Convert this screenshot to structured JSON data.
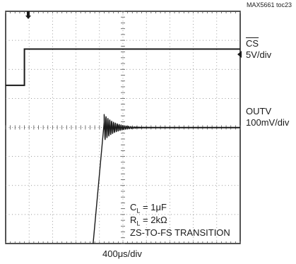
{
  "figure_id": "MAX5661 toc23",
  "channels": {
    "cs": {
      "name": "CS",
      "scale": "5V/div"
    },
    "outv": {
      "name": "OUTV",
      "scale": "100mV/div"
    }
  },
  "timebase": "400μs/div",
  "notes": {
    "cl": {
      "sym": "C",
      "sub": "L",
      "val": " = 1μF"
    },
    "rl": {
      "sym": "R",
      "sub": "L",
      "val": " = 2kΩ"
    },
    "mode": "ZS-TO-FS TRANSITION"
  },
  "chart_data": {
    "type": "line",
    "title": "",
    "xlabel": "400μs/div",
    "x_divisions": 10,
    "y_divisions": 8,
    "grid": true,
    "series": [
      {
        "name": "CS",
        "volts_per_div": 5,
        "x": [
          0,
          0.8,
          0.8,
          10
        ],
        "y": [
          0,
          0,
          1,
          1
        ]
      },
      {
        "name": "OUTV",
        "volts_per_div": 0.1,
        "step_time_div": 3.85,
        "rise_end_div": 4.2,
        "ringing_period_div": 0.08,
        "ringing_decay_div": 0.45,
        "initial_ringing_div": 0.45,
        "final_level_div": 0
      }
    ]
  }
}
